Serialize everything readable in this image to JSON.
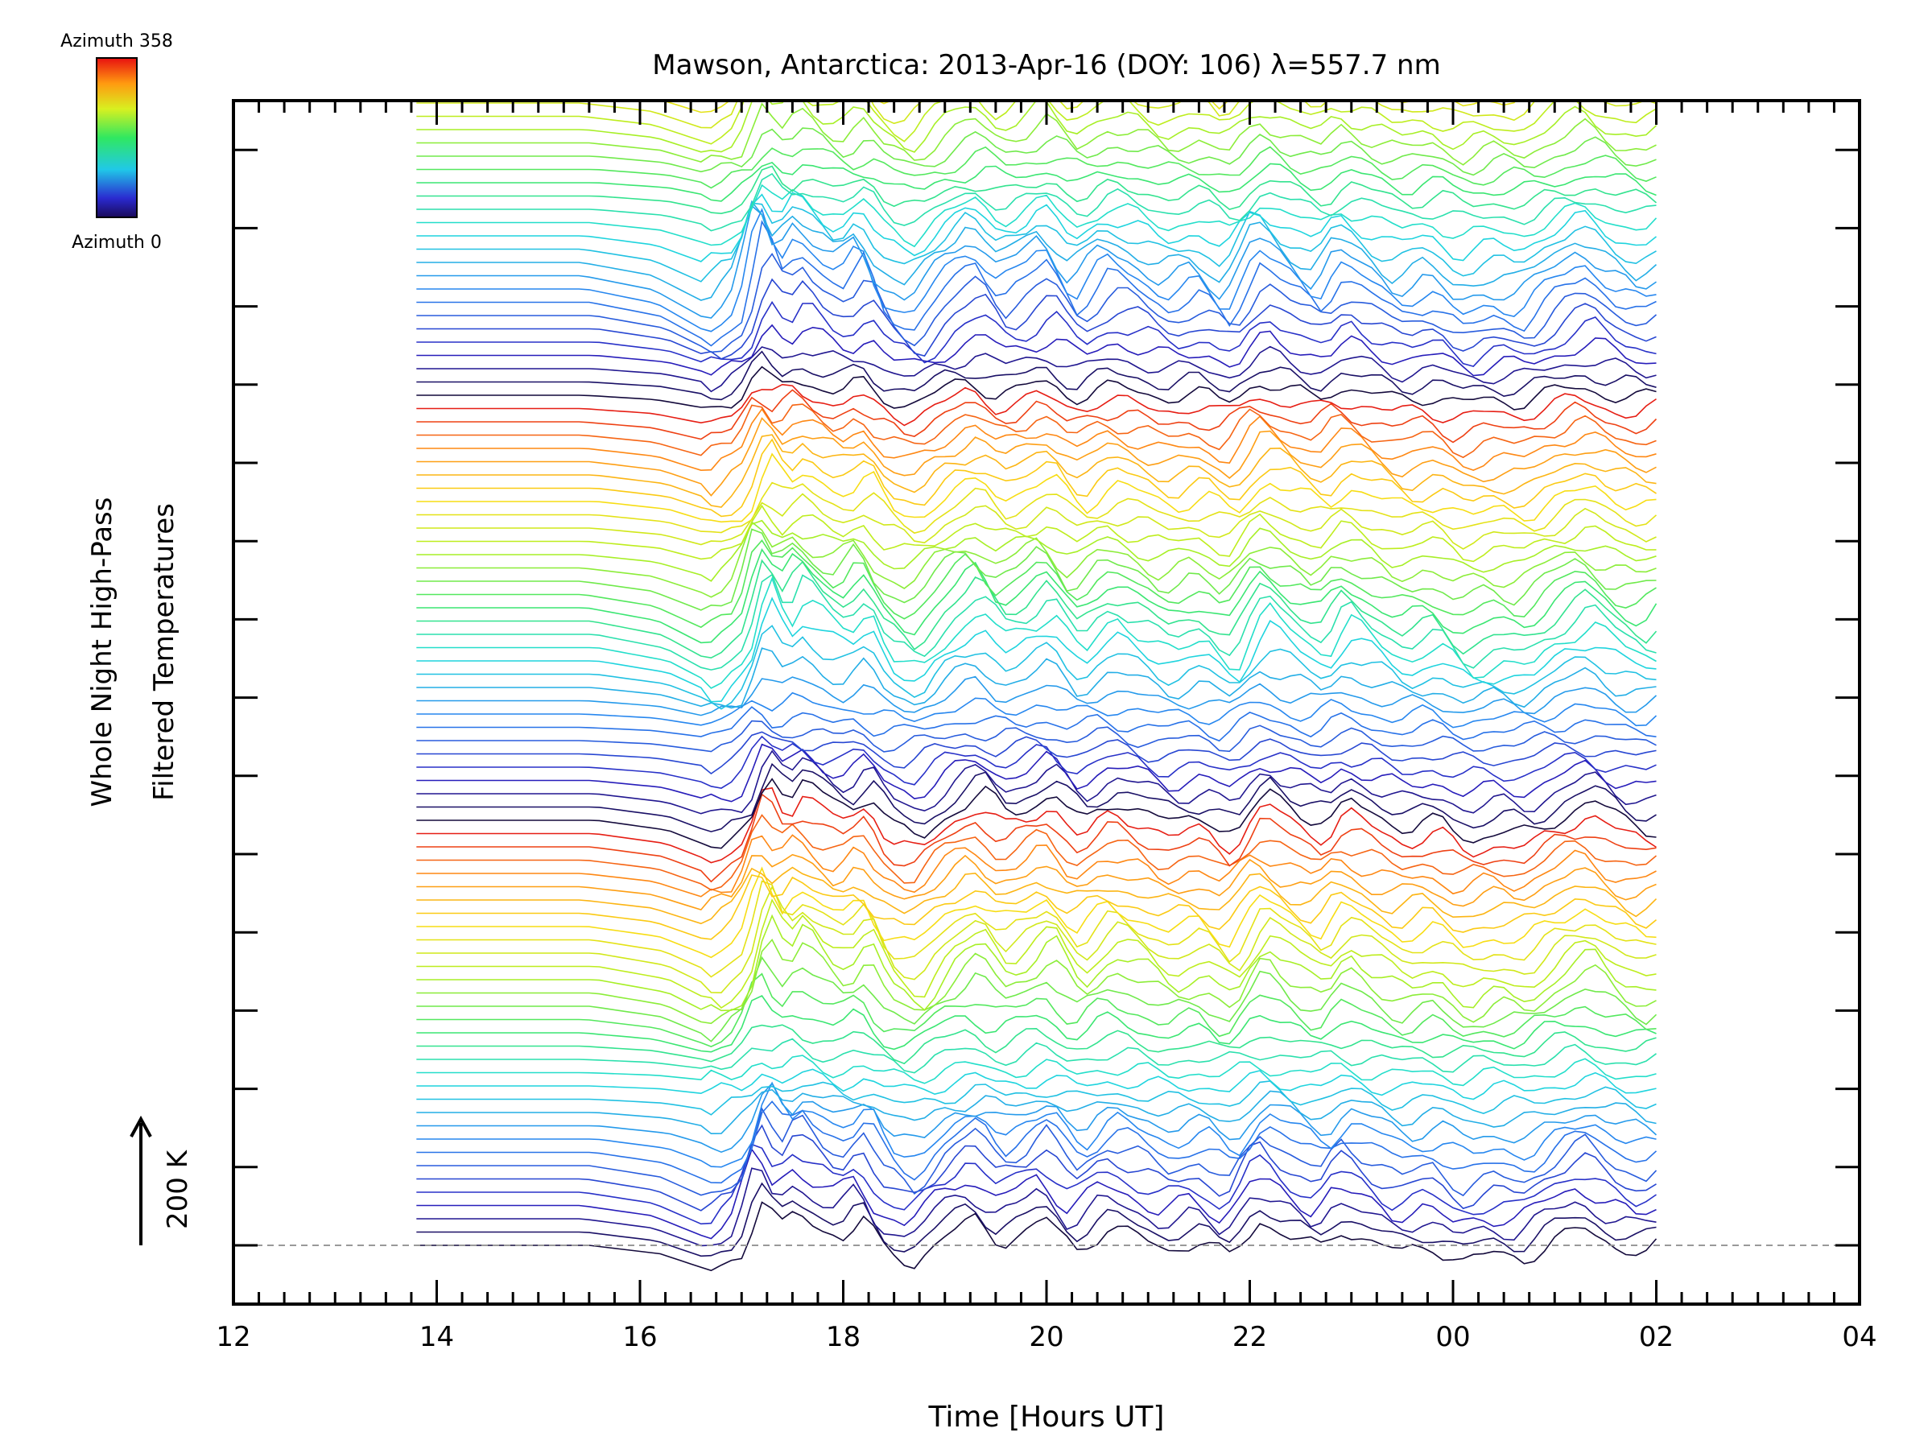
{
  "chart_data": {
    "type": "line",
    "title": "Mawson, Antarctica: 2013-Apr-16 (DOY: 106) λ=557.7 nm",
    "xlabel": "Time [Hours UT]",
    "ylabel_line1": "Whole Night High-Pass",
    "ylabel_line2": "Filtered Temperatures",
    "x_ticks": [
      "12",
      "14",
      "16",
      "18",
      "20",
      "22",
      "00",
      "02",
      "04"
    ],
    "xlim": [
      12,
      28
    ],
    "x_minor_step_hours": 0.25,
    "y_major_tick_count": 15,
    "scale_bar_label": "200 K",
    "scale_bar_kelvin": 200,
    "colorbar": {
      "top_label": "Azimuth 358",
      "bottom_label": "Azimuth 0",
      "azimuth_range_deg": [
        0,
        358
      ],
      "colormap": "rainbow (violet → blue → cyan → green → yellow → orange → red)"
    },
    "series_info": {
      "total_traces": 128,
      "offset_between_traces_kelvin": 22,
      "data_start_hour_ut": 13.8,
      "data_end_hour_ut": 26.05,
      "baseline_style": "dashed grey line at the lowest trace"
    },
    "shared_features": {
      "description": "common temperature excursion profile in kelvin vs UT hour, repeated per azimuth with small variations",
      "time_hours": [
        13.8,
        15.5,
        16.2,
        16.7,
        17.0,
        17.2,
        17.4,
        17.55,
        17.8,
        18.0,
        18.2,
        18.4,
        18.7,
        19.0,
        19.3,
        19.55,
        19.8,
        20.0,
        20.3,
        20.6,
        20.9,
        21.2,
        21.5,
        21.8,
        22.1,
        22.4,
        22.7,
        22.9,
        23.2,
        23.5,
        23.8,
        24.1,
        24.4,
        24.7,
        25.0,
        25.3,
        25.6,
        25.9,
        26.05
      ],
      "temperature_k": [
        0,
        0,
        -20,
        -60,
        -20,
        110,
        40,
        80,
        40,
        20,
        60,
        -10,
        -40,
        20,
        60,
        10,
        30,
        60,
        -10,
        40,
        20,
        -10,
        10,
        -30,
        60,
        20,
        -10,
        40,
        10,
        -20,
        0,
        -40,
        -20,
        -30,
        10,
        40,
        0,
        -20,
        0
      ]
    }
  }
}
